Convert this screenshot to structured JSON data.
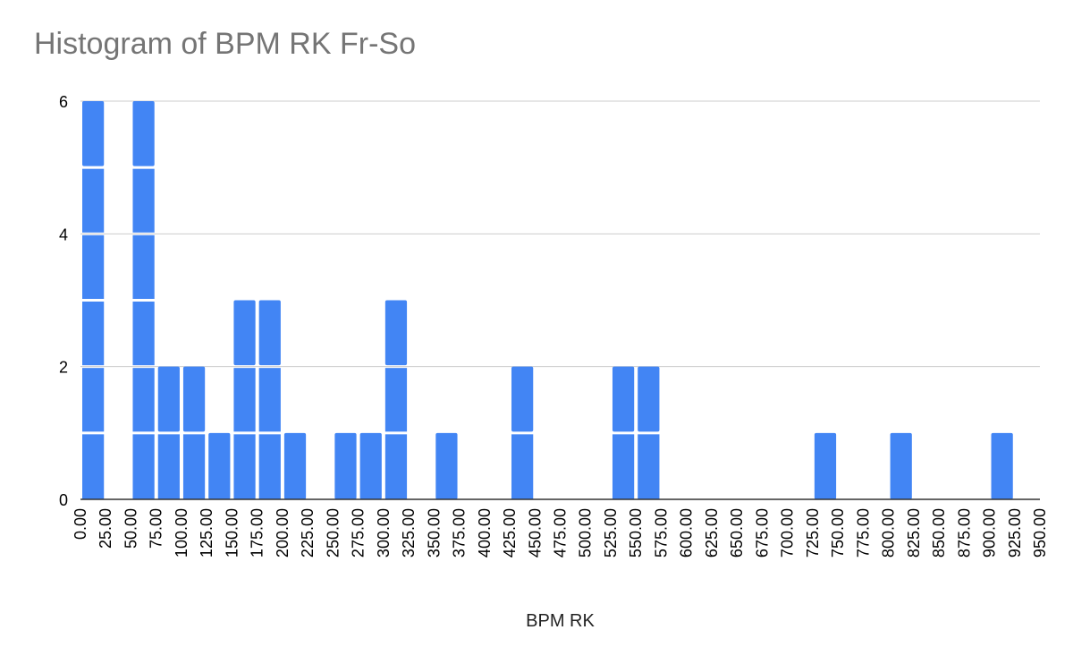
{
  "chart_data": {
    "type": "bar",
    "title": "Histogram of BPM RK Fr-So",
    "xlabel": "BPM RK",
    "ylabel": "",
    "ylim": [
      0,
      6
    ],
    "y_ticks": [
      "0",
      "2",
      "4",
      "6"
    ],
    "bin_width": 25,
    "x_ticks": [
      "0.00",
      "25.00",
      "50.00",
      "75.00",
      "100.00",
      "125.00",
      "150.00",
      "175.00",
      "200.00",
      "225.00",
      "250.00",
      "275.00",
      "300.00",
      "325.00",
      "350.00",
      "375.00",
      "400.00",
      "425.00",
      "450.00",
      "475.00",
      "500.00",
      "525.00",
      "550.00",
      "575.00",
      "600.00",
      "625.00",
      "650.00",
      "675.00",
      "700.00",
      "725.00",
      "750.00",
      "775.00",
      "800.00",
      "825.00",
      "850.00",
      "875.00",
      "900.00",
      "925.00",
      "950.00"
    ],
    "bins": [
      {
        "x0": 0,
        "x1": 25,
        "count": 6
      },
      {
        "x0": 50,
        "x1": 75,
        "count": 6
      },
      {
        "x0": 75,
        "x1": 100,
        "count": 2
      },
      {
        "x0": 100,
        "x1": 125,
        "count": 2
      },
      {
        "x0": 125,
        "x1": 150,
        "count": 1
      },
      {
        "x0": 150,
        "x1": 175,
        "count": 3
      },
      {
        "x0": 175,
        "x1": 200,
        "count": 3
      },
      {
        "x0": 200,
        "x1": 225,
        "count": 1
      },
      {
        "x0": 250,
        "x1": 275,
        "count": 1
      },
      {
        "x0": 275,
        "x1": 300,
        "count": 1
      },
      {
        "x0": 300,
        "x1": 325,
        "count": 3
      },
      {
        "x0": 350,
        "x1": 375,
        "count": 1
      },
      {
        "x0": 425,
        "x1": 450,
        "count": 2
      },
      {
        "x0": 525,
        "x1": 550,
        "count": 2
      },
      {
        "x0": 550,
        "x1": 575,
        "count": 2
      },
      {
        "x0": 725,
        "x1": 750,
        "count": 1
      },
      {
        "x0": 800,
        "x1": 825,
        "count": 1
      },
      {
        "x0": 900,
        "x1": 925,
        "count": 1
      }
    ],
    "grid": true,
    "legend": "none",
    "colors": {
      "bar": "#4285f4",
      "grid": "#cccccc",
      "axis": "#333333"
    }
  }
}
